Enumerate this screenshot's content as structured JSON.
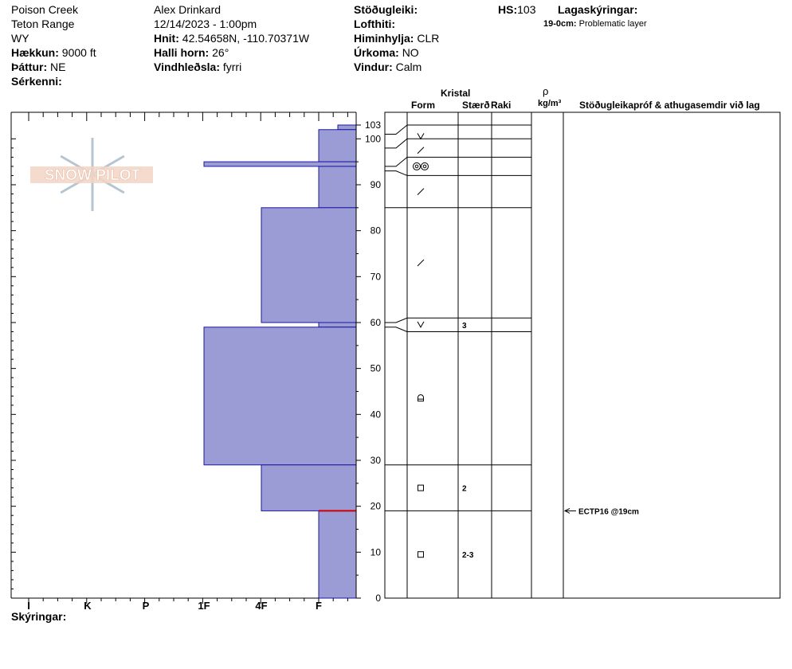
{
  "header": {
    "location": "Poison Creek",
    "range": "Teton Range",
    "state": "WY",
    "elevation_label": "Hækkun:",
    "elevation_value": "9000 ft",
    "aspect_label": "Þáttur:",
    "aspect_value": "NE",
    "features_label": "Sérkenni:",
    "observer": "Alex Drinkard",
    "datetime": "12/14/2023 - 1:00pm",
    "coords_label": "Hnit:",
    "coords_value": "42.54658N, -110.70371W",
    "slope_label": "Halli horn:",
    "slope_value": "26°",
    "wind_loading_label": "Vindhleðsla:",
    "wind_loading_value": "fyrri",
    "stability_label": "Stöðugleiki:",
    "air_temp_label": "Lofthiti:",
    "sky_label": "Himinhylja:",
    "sky_value": "CLR",
    "precip_label": "Úrkoma:",
    "precip_value": "NO",
    "wind_label": "Vindur:",
    "wind_value": "Calm",
    "hs_label": "HS:",
    "hs_value": "103",
    "layer_notes_label": "Lagaskýringar:",
    "layer_note_depth": "19-0cm:",
    "layer_note_text": "Problematic layer"
  },
  "columns": {
    "crystal": "Kristal",
    "form": "Form",
    "size": "Stærð",
    "moisture": "Raki",
    "rho": "ρ",
    "density_unit": "kg/m³",
    "tests": "Stöðugleikapróf & athugasemdir við lag"
  },
  "logo_text": "SNOW PILOT",
  "footer": {
    "comments_label": "Skýringar:"
  },
  "hardness_labels": [
    "I",
    "K",
    "P",
    "1F",
    "4F",
    "F"
  ],
  "depth_axis": {
    "max": 103,
    "labels": [
      103,
      100,
      90,
      80,
      70,
      60,
      50,
      40,
      30,
      20,
      10,
      0
    ]
  },
  "colors": {
    "layer_fill": "#9b9bd6",
    "layer_stroke": "#1a1aa0",
    "marker": "#cc0000"
  },
  "chart_data": {
    "type": "bar",
    "title": "",
    "xlabel": "",
    "ylabel": "",
    "ylim": [
      0,
      103
    ],
    "x_scale": [
      "I",
      "K",
      "P",
      "1F",
      "4F",
      "F"
    ],
    "layers": [
      {
        "top": 103,
        "bottom": 102,
        "hardness": "F+"
      },
      {
        "top": 102,
        "bottom": 95,
        "hardness": "F"
      },
      {
        "top": 95,
        "bottom": 94,
        "hardness": "1F"
      },
      {
        "top": 94,
        "bottom": 85,
        "hardness": "F"
      },
      {
        "top": 85,
        "bottom": 60,
        "hardness": "4F"
      },
      {
        "top": 60,
        "bottom": 59,
        "hardness": "F"
      },
      {
        "top": 59,
        "bottom": 29,
        "hardness": "1F"
      },
      {
        "top": 29,
        "bottom": 19,
        "hardness": "4F"
      },
      {
        "top": 19,
        "bottom": 0,
        "hardness": "F"
      }
    ]
  },
  "profile": {
    "boundaries": [
      103,
      100,
      96,
      92,
      85,
      61,
      58,
      29,
      19,
      0
    ],
    "left_boundaries": [
      101,
      98,
      94,
      93,
      85,
      60,
      59,
      29,
      19,
      0
    ],
    "crystals": [
      {
        "depth": 100.5,
        "symbol": "v",
        "size": ""
      },
      {
        "depth": 97.5,
        "symbol": "slash",
        "size": ""
      },
      {
        "depth": 94,
        "symbol": "double-ring",
        "size": ""
      },
      {
        "depth": 88.5,
        "symbol": "slash",
        "size": ""
      },
      {
        "depth": 73,
        "symbol": "slash",
        "size": ""
      },
      {
        "depth": 59.5,
        "symbol": "v",
        "size": "3"
      },
      {
        "depth": 43.5,
        "symbol": "rounded-faceted",
        "size": ""
      },
      {
        "depth": 24,
        "symbol": "square",
        "size": "2"
      },
      {
        "depth": 9.5,
        "symbol": "square",
        "size": "2-3"
      }
    ],
    "test": {
      "depth": 19,
      "text": "ECTP16 @19cm"
    }
  }
}
